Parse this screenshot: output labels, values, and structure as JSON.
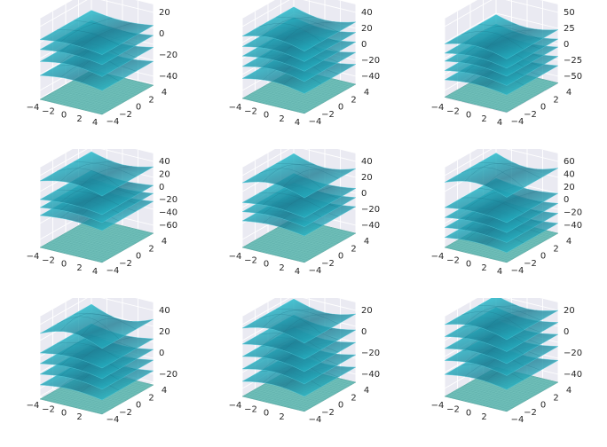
{
  "chart_data": [
    {
      "type": "surface3d",
      "x_ticks": [
        "−4",
        "−2",
        "0",
        "2",
        "4"
      ],
      "y_ticks": [
        "−4",
        "−2",
        "0",
        "2",
        "4"
      ],
      "z_ticks": [
        "20",
        "0",
        "−20",
        "−40"
      ],
      "zlim": [
        -45,
        35
      ],
      "layers": [
        {
          "z": -46,
          "amp": 0,
          "floor": true
        },
        {
          "z": -22,
          "amp": 6
        },
        {
          "z": -8,
          "amp": 7
        },
        {
          "z": 4,
          "amp": 5
        },
        {
          "z": 14,
          "amp": 5
        }
      ]
    },
    {
      "type": "surface3d",
      "x_ticks": [
        "−4",
        "−2",
        "0",
        "2",
        "4"
      ],
      "y_ticks": [
        "−4",
        "−2",
        "0",
        "2",
        "4"
      ],
      "z_ticks": [
        "40",
        "20",
        "0",
        "−20",
        "−40"
      ],
      "zlim": [
        -50,
        50
      ],
      "layers": [
        {
          "z": -50,
          "amp": 0,
          "floor": true
        },
        {
          "z": -25,
          "amp": 9
        },
        {
          "z": -10,
          "amp": 10
        },
        {
          "z": 3,
          "amp": 8
        },
        {
          "z": 15,
          "amp": 9
        },
        {
          "z": 28,
          "amp": 12
        }
      ]
    },
    {
      "type": "surface3d",
      "x_ticks": [
        "−4",
        "−2",
        "0",
        "2",
        "4"
      ],
      "y_ticks": [
        "−4",
        "−2",
        "0",
        "2",
        "4"
      ],
      "z_ticks": [
        "50",
        "25",
        "0",
        "−25",
        "−50"
      ],
      "zlim": [
        -60,
        60
      ],
      "layers": [
        {
          "z": -58,
          "amp": 0,
          "floor": true
        },
        {
          "z": -32,
          "amp": 8
        },
        {
          "z": -18,
          "amp": 9
        },
        {
          "z": -4,
          "amp": 9
        },
        {
          "z": 8,
          "amp": 10
        },
        {
          "z": 22,
          "amp": 14
        }
      ]
    },
    {
      "type": "surface3d",
      "x_ticks": [
        "−4",
        "−2",
        "0",
        "2",
        "4"
      ],
      "y_ticks": [
        "−4",
        "−2",
        "0",
        "2",
        "4"
      ],
      "z_ticks": [
        "40",
        "20",
        "0",
        "−20",
        "−40",
        "−60"
      ],
      "zlim": [
        -70,
        50
      ],
      "layers": [
        {
          "z": -70,
          "amp": 0,
          "floor": true
        },
        {
          "z": -22,
          "amp": 7
        },
        {
          "z": -10,
          "amp": 7
        },
        {
          "z": 2,
          "amp": 7
        },
        {
          "z": 30,
          "amp": 14
        }
      ]
    },
    {
      "type": "surface3d",
      "x_ticks": [
        "−4",
        "−2",
        "0",
        "2",
        "4"
      ],
      "y_ticks": [
        "−4",
        "−2",
        "0",
        "2",
        "4"
      ],
      "z_ticks": [
        "40",
        "20",
        "0",
        "−20",
        "−40"
      ],
      "zlim": [
        -55,
        50
      ],
      "layers": [
        {
          "z": -55,
          "amp": 0,
          "floor": true
        },
        {
          "z": -20,
          "amp": 7
        },
        {
          "z": -8,
          "amp": 7
        },
        {
          "z": 4,
          "amp": 7
        },
        {
          "z": 30,
          "amp": 15
        }
      ]
    },
    {
      "type": "surface3d",
      "x_ticks": [
        "−4",
        "−2",
        "0",
        "2",
        "4"
      ],
      "y_ticks": [
        "−4",
        "−2",
        "0",
        "2",
        "4"
      ],
      "z_ticks": [
        "60",
        "40",
        "20",
        "0",
        "−20",
        "−40"
      ],
      "zlim": [
        -50,
        70
      ],
      "layers": [
        {
          "z": -50,
          "amp": 0,
          "floor": true
        },
        {
          "z": -35,
          "amp": 7
        },
        {
          "z": -20,
          "amp": 7
        },
        {
          "z": -5,
          "amp": 8
        },
        {
          "z": 10,
          "amp": 8
        },
        {
          "z": 48,
          "amp": 18
        }
      ]
    },
    {
      "type": "surface3d",
      "x_ticks": [
        "−4",
        "−2",
        "0",
        "2"
      ],
      "y_ticks": [
        "−4",
        "−2",
        "0",
        "2",
        "4"
      ],
      "z_ticks": [
        "40",
        "20",
        "0",
        "−20"
      ],
      "zlim": [
        -35,
        55
      ],
      "layers": [
        {
          "z": -38,
          "amp": 0,
          "floor": true
        },
        {
          "z": -22,
          "amp": 6
        },
        {
          "z": -10,
          "amp": 7
        },
        {
          "z": 2,
          "amp": 7
        },
        {
          "z": 14,
          "amp": 7
        },
        {
          "z": 36,
          "amp": 16
        }
      ]
    },
    {
      "type": "surface3d",
      "x_ticks": [
        "−4",
        "−2",
        "0",
        "2"
      ],
      "y_ticks": [
        "−4",
        "−2",
        "0",
        "2",
        "4"
      ],
      "z_ticks": [
        "20",
        "0",
        "−20",
        "−40"
      ],
      "zlim": [
        -55,
        35
      ],
      "layers": [
        {
          "z": -55,
          "amp": 0,
          "floor": true
        },
        {
          "z": -38,
          "amp": 8
        },
        {
          "z": -24,
          "amp": 9
        },
        {
          "z": -10,
          "amp": 9
        },
        {
          "z": 4,
          "amp": 8
        },
        {
          "z": 22,
          "amp": 12
        }
      ]
    },
    {
      "type": "surface3d",
      "x_ticks": [
        "−4",
        "−2",
        "0",
        "2"
      ],
      "y_ticks": [
        "−4",
        "−2",
        "0",
        "2",
        "4"
      ],
      "z_ticks": [
        "20",
        "0",
        "−20",
        "−40"
      ],
      "zlim": [
        -50,
        30
      ],
      "layers": [
        {
          "z": -50,
          "amp": 0,
          "floor": true
        },
        {
          "z": -28,
          "amp": 6
        },
        {
          "z": -14,
          "amp": 7
        },
        {
          "z": -2,
          "amp": 7
        },
        {
          "z": 10,
          "amp": 7
        },
        {
          "z": 22,
          "amp": 10
        }
      ]
    }
  ],
  "colors": {
    "pane": "#eaeaf2",
    "grid": "#ffffff",
    "surface_light": "#29e3f0",
    "surface_dark": "#1e7e94",
    "floor": "#5fb3ad",
    "tick": "#262626"
  }
}
